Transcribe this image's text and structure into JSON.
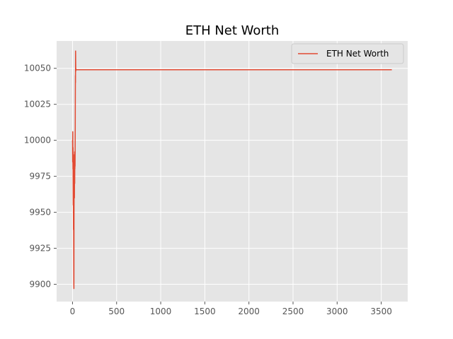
{
  "chart_data": {
    "type": "line",
    "title": "ETH Net Worth",
    "xlabel": "",
    "ylabel": "",
    "xlim": [
      -180,
      3800
    ],
    "ylim": [
      9888,
      10069
    ],
    "xticks": [
      0,
      500,
      1000,
      1500,
      2000,
      2500,
      3000,
      3500
    ],
    "xtick_labels": [
      "0",
      "500",
      "1000",
      "1500",
      "2000",
      "2500",
      "3000",
      "3500"
    ],
    "yticks": [
      9900,
      9925,
      9950,
      9975,
      10000,
      10025,
      10050
    ],
    "ytick_labels": [
      "9900",
      "9925",
      "9950",
      "9975",
      "10000",
      "10025",
      "10050"
    ],
    "grid": true,
    "legend": "top-right",
    "colors": {
      "plot_background": "#e5e5e5",
      "grid": "#ffffff",
      "series": "#e24a33"
    },
    "series": [
      {
        "name": "ETH Net Worth",
        "x": [
          0,
          1,
          2,
          3,
          4,
          5,
          6,
          7,
          8,
          9,
          10,
          11,
          12,
          13,
          14,
          15,
          16,
          17,
          18,
          19,
          20,
          21,
          22,
          23,
          24,
          25,
          26,
          27,
          28,
          29,
          30,
          31,
          32,
          33,
          34,
          35,
          36,
          37,
          38,
          39,
          40,
          41,
          42,
          43,
          44,
          45,
          46,
          47,
          48,
          49,
          50,
          3620
        ],
        "values": [
          10000,
          9998,
          9985,
          10006,
          9990,
          9980,
          9995,
          9970,
          9955,
          9985,
          9960,
          9938,
          9970,
          9950,
          9920,
          9900,
          9897,
          9940,
          9965,
          9990,
          9975,
          9985,
          9960,
          9980,
          9992,
          9970,
          9985,
          9980,
          9988,
          9982,
          9995,
          10010,
          10030,
          10045,
          10040,
          10062,
          10055,
          10048,
          10050,
          10049,
          10049,
          10049,
          10049,
          10049,
          10049,
          10049,
          10049,
          10049,
          10049,
          10049,
          10049,
          10049
        ]
      }
    ]
  }
}
